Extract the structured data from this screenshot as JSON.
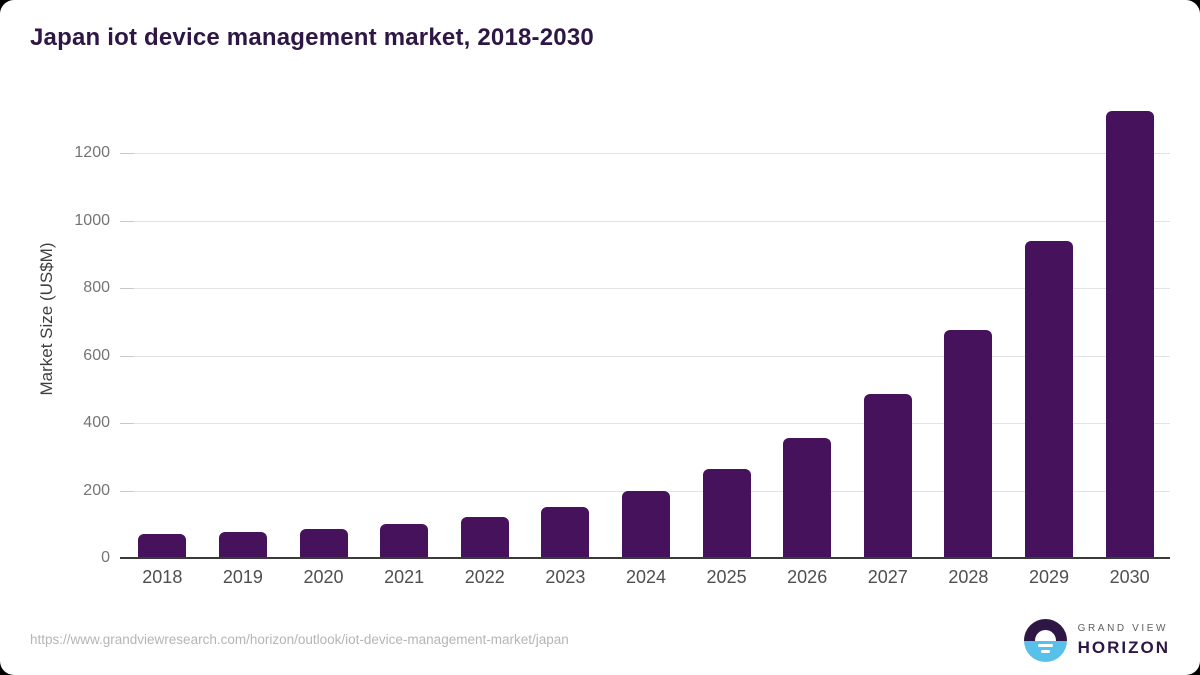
{
  "title": "Japan iot device management market, 2018-2030",
  "footer": {
    "source_url": "https://www.grandviewresearch.com/horizon/outlook/iot-device-management-market/japan",
    "logo": {
      "line1": "GRAND VIEW",
      "line2": "HORIZON"
    }
  },
  "colors": {
    "bar": "#46125C",
    "title": "#2E1745",
    "axis_label": "#3F3F3F",
    "tick_label": "#757575",
    "x_label": "#4F4F4F",
    "gridline": "#E3E3E3",
    "baseline": "#3A3A3A",
    "url_text": "#B5B5B5",
    "logo_blue": "#57C1EA",
    "logo_purple": "#2E1745",
    "logo_gray": "#5F5F5F"
  },
  "chart_data": {
    "type": "bar",
    "title": "Japan iot device management market, 2018-2030",
    "categories": [
      "2018",
      "2019",
      "2020",
      "2021",
      "2022",
      "2023",
      "2024",
      "2025",
      "2026",
      "2027",
      "2028",
      "2029",
      "2030"
    ],
    "values": [
      70,
      78,
      86,
      100,
      121,
      152,
      200,
      265,
      357,
      486,
      675,
      940,
      1325
    ],
    "xlabel": "",
    "ylabel": "Market Size (US$M)",
    "ylim": [
      0,
      1380
    ],
    "yticks": [
      0,
      200,
      400,
      600,
      800,
      1000,
      1200
    ],
    "grid": true,
    "legend": false
  }
}
